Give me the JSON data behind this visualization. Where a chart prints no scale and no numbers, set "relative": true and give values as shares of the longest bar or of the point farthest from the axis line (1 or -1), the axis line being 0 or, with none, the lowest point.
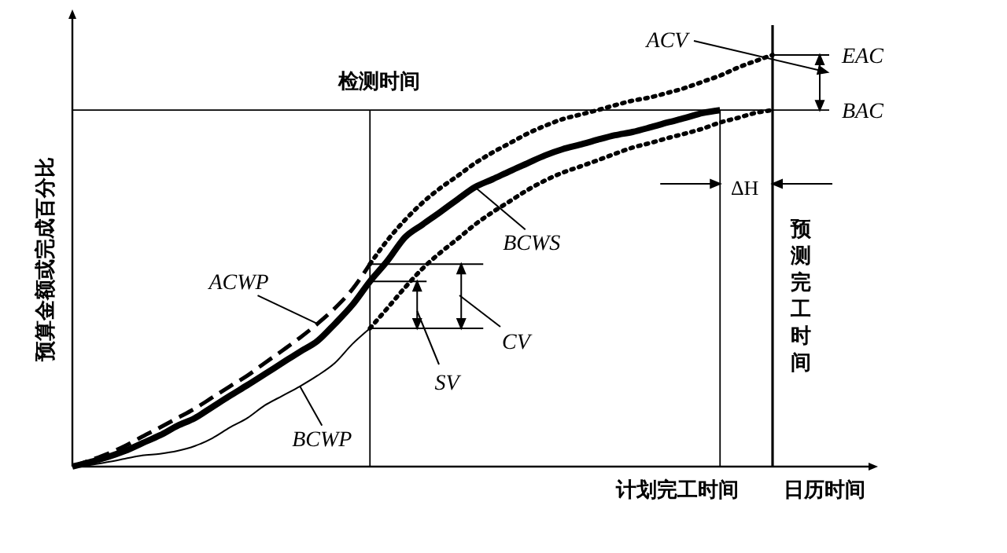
{
  "chart_data": {
    "type": "line",
    "relative": true,
    "xlabel": "日历时间",
    "ylabel": "预算金额或完成百分比",
    "legend": false,
    "categories": [
      null,
      null,
      null,
      null,
      null,
      null,
      null,
      null,
      null,
      null,
      null,
      null,
      null,
      null,
      null,
      null,
      null,
      null,
      null,
      null,
      null,
      null,
      null,
      null,
      null,
      null,
      null,
      null,
      null,
      null,
      null,
      null,
      null,
      null,
      null,
      null,
      null,
      null,
      null,
      null,
      null,
      null,
      null,
      null,
      null,
      null
    ],
    "series": [
      {
        "name": "BCWS",
        "color": "#000000",
        "line_style": "solid",
        "values": [
          0,
          0.011,
          0.023,
          0.038,
          0.057,
          0.076,
          0.099,
          0.118,
          0.145,
          0.172,
          0.198,
          0.225,
          0.252,
          0.279,
          0.305,
          0.347,
          0.393,
          0.45,
          0.5,
          0.557,
          0.588,
          0.618,
          0.649,
          0.679,
          0.698,
          0.718,
          0.737,
          0.756,
          0.771,
          0.782,
          0.794,
          0.805,
          0.813,
          0.824,
          0.836,
          0.847,
          0.859,
          0.866,
          null,
          null,
          null,
          null,
          null,
          null,
          null,
          null
        ]
      },
      {
        "name": "ACWP",
        "color": "#000000",
        "line_style": "dashed",
        "values": [
          0,
          0.015,
          0.031,
          0.05,
          0.073,
          0.095,
          0.118,
          0.141,
          0.168,
          0.195,
          0.221,
          0.252,
          0.282,
          0.313,
          0.347,
          0.385,
          0.431,
          0.492,
          null,
          null,
          null,
          null,
          null,
          null,
          null,
          null,
          null,
          null,
          null,
          null,
          null,
          null,
          null,
          null,
          null,
          null,
          null,
          null,
          null,
          null,
          null,
          null,
          null,
          null,
          null,
          null
        ]
      },
      {
        "name": "BCWP",
        "color": "#000000",
        "line_style": "solid",
        "values": [
          0,
          0.004,
          0.011,
          0.019,
          0.027,
          0.031,
          0.038,
          0.05,
          0.069,
          0.095,
          0.118,
          0.149,
          0.172,
          0.195,
          0.221,
          0.252,
          0.298,
          0.336,
          null,
          null,
          null,
          null,
          null,
          null,
          null,
          null,
          null,
          null,
          null,
          null,
          null,
          null,
          null,
          null,
          null,
          null,
          null,
          null,
          null,
          null,
          null,
          null,
          null,
          null,
          null,
          null
        ]
      },
      {
        "color": "#000000",
        "line_style": "dotted",
        "values": [
          null,
          null,
          null,
          null,
          null,
          null,
          null,
          null,
          null,
          null,
          null,
          null,
          null,
          null,
          null,
          null,
          null,
          0.492,
          0.55,
          0.599,
          0.641,
          0.676,
          0.706,
          0.737,
          0.763,
          0.786,
          0.809,
          0.828,
          0.844,
          0.855,
          0.866,
          0.878,
          0.889,
          0.897,
          0.908,
          0.92,
          0.935,
          0.95,
          0.969,
          0.985,
          1,
          null,
          null,
          null,
          null,
          null
        ]
      },
      {
        "color": "#000000",
        "line_style": "dotted",
        "values": [
          null,
          null,
          null,
          null,
          null,
          null,
          null,
          null,
          null,
          null,
          null,
          null,
          null,
          null,
          null,
          null,
          null,
          0.336,
          0.385,
          0.435,
          0.481,
          0.519,
          0.553,
          0.588,
          0.618,
          0.645,
          0.672,
          0.695,
          0.714,
          0.729,
          0.744,
          0.76,
          0.775,
          0.786,
          0.798,
          0.809,
          0.821,
          0.836,
          0.847,
          0.859,
          0.866,
          null,
          null,
          null,
          null,
          null
        ]
      }
    ],
    "ref_lines": [
      {
        "axis": "y",
        "value": 0.866,
        "label": "BAC"
      },
      {
        "axis": "y",
        "value": 1,
        "label": "EAC"
      }
    ],
    "annotations": [
      "检测时间",
      "计划完工时间",
      "预测完工时间",
      "ACV",
      "ΔH",
      "SV",
      "CV"
    ]
  }
}
